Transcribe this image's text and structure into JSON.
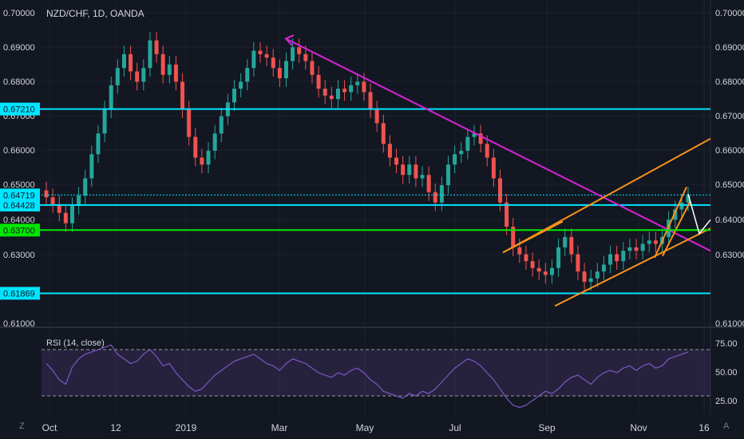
{
  "header": {
    "symbol_line": "NZD/CHF, 1D, OANDA"
  },
  "rsi": {
    "label": "RSI (14, close)"
  },
  "colors": {
    "background": "#131722",
    "up": "#26a69a",
    "down": "#ef5350",
    "cyan_level": "#00e5ff",
    "green_level": "#00e600",
    "trendline": "#d623d6",
    "channel": "#f7931a",
    "rsi_line": "#7e57c2"
  },
  "icons": {
    "bottom_left": "Z",
    "bottom_right": "A"
  },
  "chart_data": [
    {
      "type": "candlestick",
      "title": "NZD/CHF, 1D, OANDA",
      "y_ticks": [
        "0.70000",
        "0.69000",
        "0.68000",
        "0.67000",
        "0.66000",
        "0.65000",
        "0.64000",
        "0.63000",
        "0.61000"
      ],
      "ylim": [
        0.6065,
        0.7005
      ],
      "x_ticks": [
        "Oct",
        "12",
        "2019",
        "Mar",
        "May",
        "Jul",
        "Sep",
        "Nov",
        "16"
      ],
      "highlighted_levels": [
        {
          "value": 0.6721,
          "label": "0.67210",
          "color": "#00e5ff"
        },
        {
          "value": 0.64719,
          "label": "0.64719",
          "color": "#00e5ff",
          "style": "dotted"
        },
        {
          "value": 0.64428,
          "label": "0.64428",
          "color": "#00e5ff"
        },
        {
          "value": 0.637,
          "label": "0.63700",
          "color": "#00e600"
        },
        {
          "value": 0.61869,
          "label": "0.61869",
          "color": "#00e5ff"
        }
      ],
      "close_series": [
        0.6465,
        0.6445,
        0.642,
        0.639,
        0.644,
        0.647,
        0.652,
        0.659,
        0.665,
        0.672,
        0.679,
        0.684,
        0.688,
        0.683,
        0.68,
        0.684,
        0.692,
        0.688,
        0.682,
        0.685,
        0.68,
        0.672,
        0.664,
        0.658,
        0.656,
        0.66,
        0.665,
        0.67,
        0.674,
        0.678,
        0.68,
        0.684,
        0.689,
        0.688,
        0.687,
        0.684,
        0.681,
        0.686,
        0.69,
        0.688,
        0.686,
        0.682,
        0.678,
        0.676,
        0.675,
        0.678,
        0.677,
        0.679,
        0.68,
        0.677,
        0.672,
        0.668,
        0.662,
        0.658,
        0.656,
        0.653,
        0.656,
        0.652,
        0.653,
        0.648,
        0.645,
        0.65,
        0.656,
        0.659,
        0.66,
        0.664,
        0.665,
        0.662,
        0.658,
        0.652,
        0.645,
        0.638,
        0.632,
        0.63,
        0.628,
        0.626,
        0.625,
        0.624,
        0.626,
        0.632,
        0.635,
        0.63,
        0.625,
        0.622,
        0.623,
        0.625,
        0.627,
        0.63,
        0.628,
        0.631,
        0.632,
        0.631,
        0.633,
        0.634,
        0.633,
        0.635,
        0.64,
        0.643,
        0.645,
        0.647
      ],
      "channels": "orange ascending channels and arrows drawn on price",
      "downtrend_line": "magenta line from March high to late November"
    },
    {
      "type": "line",
      "title": "RSI (14, close)",
      "y_ticks": [
        "75.00",
        "50.00",
        "25.00"
      ],
      "ylim": [
        18,
        80
      ],
      "bands": [
        30,
        70
      ],
      "values": [
        58,
        52,
        44,
        40,
        55,
        62,
        66,
        68,
        70,
        72,
        74,
        66,
        62,
        58,
        60,
        66,
        70,
        64,
        56,
        58,
        50,
        44,
        38,
        34,
        36,
        42,
        48,
        52,
        56,
        60,
        62,
        64,
        66,
        62,
        58,
        56,
        52,
        58,
        62,
        60,
        58,
        54,
        50,
        48,
        46,
        50,
        48,
        52,
        54,
        50,
        44,
        40,
        34,
        32,
        30,
        28,
        32,
        30,
        34,
        32,
        36,
        42,
        48,
        54,
        58,
        62,
        60,
        56,
        50,
        44,
        36,
        28,
        22,
        20,
        22,
        26,
        30,
        34,
        32,
        36,
        42,
        46,
        48,
        44,
        40,
        46,
        50,
        52,
        50,
        54,
        56,
        52,
        56,
        58,
        54,
        56,
        62,
        64,
        66,
        68
      ]
    }
  ]
}
